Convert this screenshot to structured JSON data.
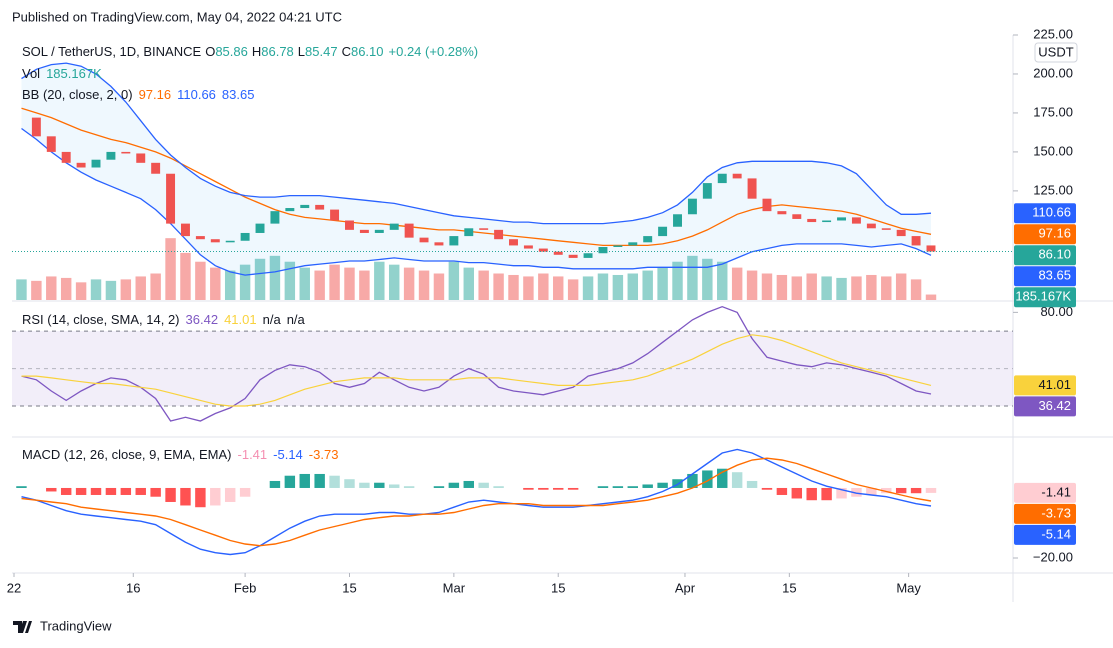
{
  "header": {
    "published": "Published on TradingView.com, May 04, 2022 04:21 UTC",
    "brand": "TradingView"
  },
  "chart_data": [
    {
      "type": "candlestick",
      "title": "SOL / TetherUS, 1D, BINANCE",
      "ohlc_labels": [
        "O",
        "H",
        "L",
        "C"
      ],
      "ohlc_values": [
        85.86,
        86.78,
        85.47,
        86.1
      ],
      "ohlc_value_labels": [
        "85.86",
        "86.78",
        "85.47",
        "86.10"
      ],
      "change_label": "+0.24 (+0.28%)",
      "currency": "USDT",
      "x": [
        1,
        3,
        5,
        7,
        9,
        11,
        13,
        15,
        17,
        19,
        21,
        23,
        25,
        27,
        29,
        31,
        33,
        35,
        37,
        39,
        41,
        43,
        45,
        47,
        49,
        51,
        53,
        55,
        57,
        59,
        61,
        63,
        65,
        67,
        69,
        71,
        73,
        75,
        77,
        79,
        81,
        83,
        85,
        87,
        89,
        91,
        93,
        95,
        97,
        99,
        101,
        103,
        105,
        107,
        109,
        111,
        113,
        115,
        117,
        119,
        121,
        123
      ],
      "close": [
        172,
        160,
        150,
        143,
        140,
        145,
        150,
        149,
        143,
        136,
        104,
        96,
        94,
        92,
        93,
        98,
        104,
        112,
        114,
        116,
        113,
        106,
        100,
        98,
        100,
        104,
        95,
        92,
        90,
        96,
        101,
        100,
        94,
        90,
        88,
        86,
        84,
        82,
        85,
        89,
        90,
        92,
        96,
        102,
        110,
        120,
        130,
        136,
        133,
        120,
        112,
        110,
        107,
        105,
        106,
        108,
        104,
        101,
        100,
        96,
        90,
        86.1
      ],
      "colors": {
        "up": "#26a69a",
        "down": "#ef5350"
      },
      "xlim": [
        0,
        134
      ],
      "xticks": [
        {
          "value": 0,
          "label": "22"
        },
        16,
        {
          "value": 31,
          "label": "Feb"
        },
        {
          "value": 45,
          "label": "15"
        },
        {
          "value": 59,
          "label": "Mar"
        },
        {
          "value": 73,
          "label": "15"
        },
        {
          "value": 90,
          "label": "Apr"
        },
        {
          "value": 104,
          "label": "15"
        },
        {
          "value": 120,
          "label": "May"
        }
      ],
      "ylim": [
        55,
        225
      ],
      "yticks": [
        {
          "value": 225,
          "label": "225.00"
        },
        {
          "value": 200,
          "label": "200.00"
        },
        {
          "value": 175,
          "label": "175.00"
        },
        {
          "value": 150,
          "label": "150.00"
        },
        {
          "value": 125,
          "label": "125.00"
        }
      ],
      "volume": {
        "label": "Vol",
        "last_label": "185.167K",
        "ylim": [
          0,
          9000000
        ],
        "values": [
          700000,
          650000,
          800000,
          750000,
          600000,
          700000,
          650000,
          700000,
          800000,
          900000,
          2100000,
          1600000,
          1300000,
          1100000,
          1000000,
          1200000,
          1400000,
          1500000,
          1300000,
          1100000,
          1000000,
          1200000,
          1100000,
          1000000,
          1300000,
          1200000,
          1100000,
          1000000,
          900000,
          1300000,
          1100000,
          1000000,
          900000,
          850000,
          800000,
          900000,
          800000,
          700000,
          800000,
          900000,
          850000,
          900000,
          1000000,
          1100000,
          1300000,
          1500000,
          1400000,
          1300000,
          1100000,
          1000000,
          900000,
          850000,
          800000,
          900000,
          800000,
          750000,
          800000,
          850000,
          800000,
          900000,
          700000,
          185167
        ]
      },
      "bollinger": {
        "name": "BB (20, close, 2, 0)",
        "fill": "#2196f3",
        "series": [
          {
            "color": "#ff6d00",
            "values": [
              178,
              175,
              172,
              168,
              164,
              161,
              158,
              156,
              153,
              150,
              146,
              141,
              136,
              131,
              126,
              121,
              117,
              113,
              110,
              108,
              107,
              106,
              105,
              104,
              104,
              103,
              102,
              101,
              100,
              100,
              99,
              98,
              97,
              96,
              95,
              94,
              93,
              92,
              91,
              90,
              90,
              90,
              90,
              91,
              93,
              96,
              100,
              105,
              110,
              113,
              115,
              116,
              115,
              114,
              113,
              112,
              110,
              107,
              104,
              101,
              99,
              97.16
            ]
          },
          {
            "color": "#2962ff",
            "values": [
              197,
              203,
              206,
              207,
              205,
              200,
              192,
              182,
              170,
              158,
              148,
              140,
              133,
              128,
              124,
              122,
              121,
              121,
              122,
              122,
              122,
              121,
              120,
              119,
              118,
              117,
              115,
              113,
              111,
              109,
              108,
              107,
              106,
              105,
              105,
              104,
              104,
              104,
              104,
              104,
              105,
              106,
              108,
              111,
              116,
              124,
              134,
              140,
              143,
              144,
              144,
              144,
              144,
              144,
              143,
              141,
              136,
              126,
              116,
              110,
              110,
              110.66
            ]
          },
          {
            "color": "#2962ff",
            "values": [
              165,
              158,
              150,
              143,
              137,
              132,
              128,
              124,
              120,
              113,
              104,
              94,
              84,
              77,
              73,
              71,
              72,
              73,
              75,
              77,
              78,
              79,
              80,
              80,
              81,
              82,
              81,
              80,
              80,
              80,
              79,
              79,
              78,
              77,
              77,
              76,
              76,
              75,
              75,
              75,
              75,
              75,
              76,
              76,
              76,
              76,
              76,
              78,
              82,
              86,
              88,
              90,
              91,
              91,
              91,
              91,
              90,
              89,
              90,
              91,
              88,
              83.65
            ]
          }
        ]
      }
    },
    {
      "type": "line",
      "title": "RSI (14, close, SMA, 14, 2)",
      "na_labels": [
        "n/a",
        "n/a"
      ],
      "series": [
        {
          "color": "#7e57c2",
          "values": [
            46,
            44,
            38,
            33,
            38,
            42,
            45,
            44,
            40,
            34,
            22,
            24,
            22,
            26,
            29,
            34,
            44,
            49,
            52,
            51,
            48,
            42,
            40,
            42,
            48,
            44,
            40,
            38,
            40,
            46,
            50,
            47,
            40,
            38,
            37,
            36,
            38,
            40,
            46,
            48,
            50,
            53,
            58,
            64,
            70,
            76,
            80,
            83,
            80,
            66,
            56,
            54,
            52,
            51,
            53,
            52,
            50,
            48,
            46,
            42,
            38,
            36.42
          ]
        },
        {
          "color": "#f9d23c",
          "values": [
            46,
            46,
            45,
            44,
            43,
            42,
            42,
            41,
            40,
            39,
            37,
            35,
            33,
            31,
            30,
            30,
            31,
            33,
            36,
            39,
            41,
            43,
            44,
            45,
            45,
            45,
            44,
            44,
            44,
            44,
            45,
            45,
            45,
            44,
            43,
            42,
            41,
            41,
            41,
            42,
            43,
            44,
            46,
            49,
            52,
            55,
            59,
            63,
            66,
            68,
            67,
            65,
            62,
            59,
            56,
            53,
            51,
            49,
            47,
            45,
            43,
            41.01
          ]
        }
      ],
      "band": [
        30,
        70
      ],
      "midline": 50,
      "band_color": "#7e57c2",
      "ylim": [
        14,
        85
      ],
      "yticks": [
        {
          "value": 80,
          "label": "80.00"
        }
      ]
    },
    {
      "type": "macd",
      "title": "MACD (12, 26, close, 9, EMA, EMA)",
      "histogram": {
        "colors": [
          "#26a69a",
          "#b2dfdb",
          "#ff5252",
          "#ffcdd2"
        ],
        "values": [
          0.5,
          0,
          -1,
          -2,
          -2,
          -2,
          -2,
          -2,
          -2,
          -2.5,
          -4,
          -5,
          -5.5,
          -5,
          -4,
          -2.5,
          0,
          2,
          3.5,
          4,
          4,
          3.5,
          2.5,
          1.5,
          1.5,
          1,
          0.5,
          0,
          0.5,
          1.5,
          2,
          1.5,
          0.5,
          0,
          -0.5,
          -0.5,
          -0.5,
          -0.5,
          0,
          0.5,
          0.5,
          0.5,
          1,
          1.5,
          2.5,
          4,
          5,
          5.5,
          4.5,
          2,
          -0.5,
          -2,
          -3,
          -3.5,
          -3.5,
          -3,
          -2.5,
          -2,
          -1.5,
          -1.5,
          -1.5,
          -1.41
        ]
      },
      "series": [
        {
          "color": "#2962ff",
          "values": [
            -2.5,
            -3.5,
            -5,
            -6.5,
            -7.5,
            -8,
            -8.5,
            -9,
            -9.5,
            -10.5,
            -13,
            -15.5,
            -17.5,
            -18.5,
            -19,
            -18.5,
            -16.5,
            -14,
            -11.5,
            -9.5,
            -8,
            -7.5,
            -7.5,
            -7.5,
            -7,
            -7,
            -7.5,
            -7.5,
            -7,
            -5.5,
            -4,
            -3.5,
            -4,
            -4.5,
            -5,
            -5.5,
            -5.5,
            -5.5,
            -5,
            -4.5,
            -4,
            -3.5,
            -2.5,
            -1,
            1,
            4,
            7,
            10,
            11,
            10,
            8,
            6,
            4,
            2,
            0.5,
            -0.5,
            -1.5,
            -2,
            -2.5,
            -3.5,
            -4.5,
            -5.14
          ]
        },
        {
          "color": "#ff6d00",
          "values": [
            -3,
            -3.5,
            -4,
            -4.5,
            -5.5,
            -6,
            -6.5,
            -7,
            -7.5,
            -8,
            -9,
            -10.5,
            -12,
            -13.5,
            -15,
            -16,
            -16.5,
            -16,
            -15,
            -13.5,
            -12,
            -11,
            -10,
            -9,
            -8.5,
            -8,
            -8,
            -7.5,
            -7.5,
            -7,
            -6,
            -5,
            -4.5,
            -4.5,
            -4.5,
            -5,
            -5,
            -5,
            -5,
            -5,
            -4.5,
            -4,
            -3.5,
            -2.5,
            -1.5,
            0,
            2,
            4.5,
            6.5,
            8,
            8.5,
            8,
            7,
            5.5,
            4,
            2.5,
            1,
            0,
            -1,
            -2,
            -3,
            -3.73
          ]
        }
      ],
      "ylim": [
        -24,
        13.7
      ],
      "yticks": [
        {
          "value": -20,
          "label": "−20.00"
        }
      ]
    }
  ]
}
